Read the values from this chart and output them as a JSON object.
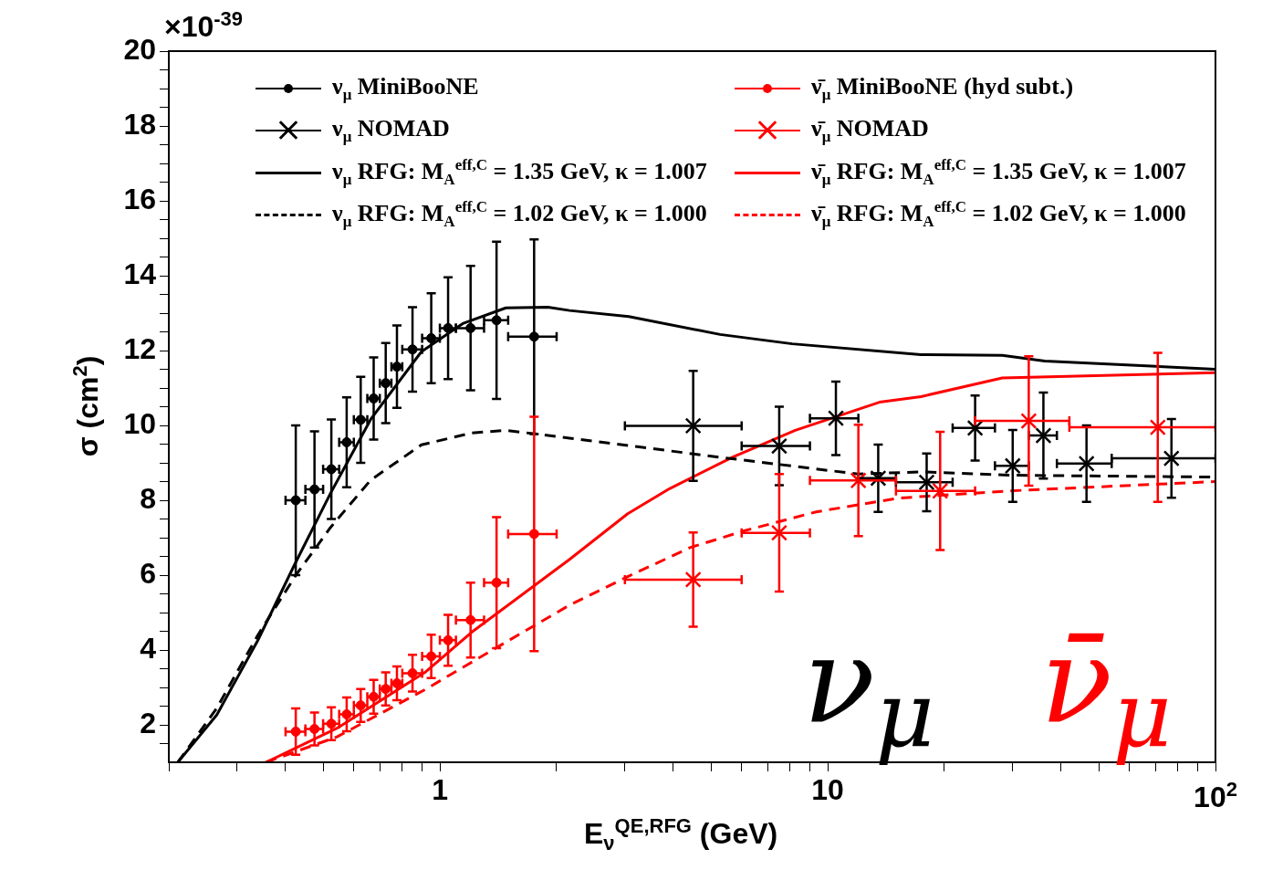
{
  "chart_data": {
    "type": "scatter",
    "xlabel": "E$_{ν}$$^{QE,RFG}$ (GeV)",
    "ylabel": "σ (cm$^{2}$)",
    "annotations": [
      "×10$^{-39}$",
      "ν$_{μ}$",
      "ν̄$_{μ}$"
    ],
    "log": "x",
    "grid": false,
    "legend": "top",
    "xlim": [
      0.2,
      100
    ],
    "xticks": [
      {
        "value": 0.2,
        "label": null
      },
      {
        "value": 0.3,
        "label": null
      },
      {
        "value": 0.4,
        "label": null
      },
      {
        "value": 0.5,
        "label": null
      },
      {
        "value": 0.6,
        "label": null
      },
      {
        "value": 0.7,
        "label": null
      },
      {
        "value": 0.8,
        "label": null
      },
      {
        "value": 0.9,
        "label": null
      },
      1,
      {
        "value": 2,
        "label": null
      },
      {
        "value": 3,
        "label": null
      },
      {
        "value": 4,
        "label": null
      },
      {
        "value": 5,
        "label": null
      },
      {
        "value": 6,
        "label": null
      },
      {
        "value": 7,
        "label": null
      },
      {
        "value": 8,
        "label": null
      },
      {
        "value": 9,
        "label": null
      },
      10,
      {
        "value": 20,
        "label": null
      },
      {
        "value": 30,
        "label": null
      },
      {
        "value": 40,
        "label": null
      },
      {
        "value": 50,
        "label": null
      },
      {
        "value": 60,
        "label": null
      },
      {
        "value": 70,
        "label": null
      },
      {
        "value": 80,
        "label": null
      },
      {
        "value": 90,
        "label": null
      },
      {
        "value": 100,
        "label": "10$^{2}$"
      }
    ],
    "ylim": [
      1,
      20
    ],
    "yticks": [
      {
        "value": 1.5,
        "label": null
      },
      2,
      {
        "value": 2.5,
        "label": null
      },
      {
        "value": 3,
        "label": null
      },
      {
        "value": 3.5,
        "label": null
      },
      4,
      {
        "value": 4.5,
        "label": null
      },
      {
        "value": 5,
        "label": null
      },
      {
        "value": 5.5,
        "label": null
      },
      6,
      {
        "value": 6.5,
        "label": null
      },
      {
        "value": 7,
        "label": null
      },
      {
        "value": 7.5,
        "label": null
      },
      8,
      {
        "value": 8.5,
        "label": null
      },
      {
        "value": 9,
        "label": null
      },
      {
        "value": 9.5,
        "label": null
      },
      10,
      {
        "value": 10.5,
        "label": null
      },
      {
        "value": 11,
        "label": null
      },
      {
        "value": 11.5,
        "label": null
      },
      12,
      {
        "value": 12.5,
        "label": null
      },
      {
        "value": 13,
        "label": null
      },
      {
        "value": 13.5,
        "label": null
      },
      14,
      {
        "value": 14.5,
        "label": null
      },
      {
        "value": 15,
        "label": null
      },
      {
        "value": 15.5,
        "label": null
      },
      16,
      {
        "value": 16.5,
        "label": null
      },
      {
        "value": 17,
        "label": null
      },
      {
        "value": 17.5,
        "label": null
      },
      18,
      {
        "value": 18.5,
        "label": null
      },
      {
        "value": 19,
        "label": null
      },
      {
        "value": 19.5,
        "label": null
      },
      20
    ],
    "series": [
      {
        "name": "ν$_{μ}$ MiniBooNE",
        "type": "scatter",
        "marker": "circle",
        "color": "#000000",
        "x": [
          0.425,
          0.475,
          0.525,
          0.575,
          0.625,
          0.675,
          0.725,
          0.775,
          0.85,
          0.95,
          1.05,
          1.2,
          1.4,
          1.75
        ],
        "values": [
          8.0,
          8.29,
          8.83,
          9.55,
          10.15,
          10.72,
          11.13,
          11.57,
          12.03,
          12.33,
          12.6,
          12.6,
          12.81,
          12.37
        ],
        "errors": [
          2.0,
          1.55,
          1.33,
          1.2,
          1.15,
          1.1,
          1.07,
          1.1,
          1.13,
          1.2,
          1.36,
          1.66,
          2.1,
          2.6
        ],
        "xerrors": [
          0.025,
          0.025,
          0.025,
          0.025,
          0.025,
          0.025,
          0.025,
          0.025,
          0.05,
          0.05,
          0.05,
          0.1,
          0.1,
          0.25
        ]
      },
      {
        "name": "ν$_{μ}$ NOMAD",
        "type": "scatter",
        "marker": "cross",
        "color": "#000000",
        "x": [
          4.5,
          7.5,
          10.5,
          13.5,
          18,
          24,
          30,
          36,
          46.5,
          77
        ],
        "values": [
          9.99,
          9.45,
          10.19,
          8.59,
          8.48,
          9.93,
          8.92,
          9.73,
          8.98,
          9.12
        ],
        "errors": [
          1.47,
          1.05,
          0.98,
          0.9,
          0.77,
          0.87,
          0.96,
          1.15,
          1.02,
          1.05
        ],
        "xerrors": [
          1.5,
          1.5,
          1.5,
          1.5,
          3,
          3,
          3,
          3,
          7.5,
          23
        ]
      },
      {
        "name": "ν$_{μ}$ RFG: M$_{A}$$^{eff,C}$ = 1.35 GeV, κ = 1.007",
        "type": "line",
        "line_style": "solid",
        "marker": "none",
        "color": "#000000",
        "x": [
          0.211,
          0.266,
          0.339,
          0.422,
          0.522,
          0.663,
          0.896,
          1.15,
          1.48,
          1.9,
          2.16,
          3.07,
          5.28,
          8.1,
          17.4,
          28.2,
          36.3,
          100
        ],
        "values": [
          1.0,
          2.27,
          4.25,
          6.28,
          8.18,
          10.16,
          11.97,
          12.73,
          13.14,
          13.16,
          13.07,
          12.91,
          12.43,
          12.18,
          11.89,
          11.87,
          11.72,
          11.5
        ]
      },
      {
        "name": "ν$_{μ}$ RFG: M$_{A}$$^{eff,C}$ = 1.02 GeV, κ = 1.000",
        "type": "line",
        "line_style": "dashed",
        "marker": "none",
        "color": "#000000",
        "x": [
          0.211,
          0.266,
          0.339,
          0.426,
          0.522,
          0.663,
          0.896,
          1.21,
          1.48,
          2.16,
          5.27,
          12.0,
          17.4,
          29.3,
          100
        ],
        "values": [
          1.0,
          2.45,
          4.39,
          6.01,
          7.27,
          8.54,
          9.48,
          9.8,
          9.87,
          9.66,
          9.15,
          8.7,
          8.76,
          8.67,
          8.62
        ]
      },
      {
        "name": "ν̄$_{μ}$ MiniBooNE (hyd subt.)",
        "type": "scatter",
        "marker": "circle",
        "color": "#ff0000",
        "x": [
          0.425,
          0.475,
          0.525,
          0.575,
          0.625,
          0.675,
          0.725,
          0.775,
          0.85,
          0.95,
          1.05,
          1.2,
          1.4,
          1.75
        ],
        "values": [
          1.82,
          1.89,
          2.03,
          2.28,
          2.52,
          2.75,
          2.96,
          3.11,
          3.38,
          3.83,
          4.26,
          4.8,
          5.8,
          7.1
        ],
        "errors": [
          0.62,
          0.44,
          0.44,
          0.45,
          0.44,
          0.45,
          0.44,
          0.45,
          0.49,
          0.58,
          0.68,
          1.0,
          1.75,
          3.13
        ],
        "xerrors": [
          0.025,
          0.025,
          0.025,
          0.025,
          0.025,
          0.025,
          0.025,
          0.025,
          0.05,
          0.05,
          0.05,
          0.1,
          0.1,
          0.25
        ]
      },
      {
        "name": "ν̄$_{μ}$ NOMAD",
        "type": "scatter",
        "marker": "cross",
        "color": "#ff0000",
        "x": [
          4.5,
          7.5,
          12,
          19.5,
          33,
          71
        ],
        "values": [
          5.88,
          7.13,
          8.53,
          8.25,
          10.12,
          9.95
        ],
        "errors": [
          1.26,
          1.57,
          1.49,
          1.58,
          1.73,
          1.99
        ],
        "xerrors": [
          1.5,
          1.5,
          3,
          4.5,
          9,
          29
        ]
      },
      {
        "name": "ν̄$_{μ}$ RFG: M$_{A}$$^{eff,C}$ = 1.35 GeV, κ = 1.007",
        "type": "line",
        "line_style": "solid",
        "marker": "none",
        "color": "#ff0000",
        "x": [
          0.356,
          0.543,
          0.915,
          1.21,
          2.16,
          3.05,
          3.91,
          5.68,
          8.25,
          13.6,
          17.4,
          28.2,
          100
        ],
        "values": [
          1.0,
          1.91,
          3.4,
          4.48,
          6.42,
          7.64,
          8.31,
          9.15,
          9.87,
          10.62,
          10.77,
          11.27,
          11.41
        ]
      },
      {
        "name": "ν̄$_{μ}$ RFG: M$_{A}$$^{eff,C}$ = 1.02 GeV, κ = 1.000",
        "type": "line",
        "line_style": "dashed",
        "marker": "none",
        "color": "#ff0000",
        "x": [
          0.356,
          0.543,
          0.915,
          1.48,
          2.16,
          3.05,
          4.43,
          6.12,
          9.34,
          15.3,
          29.3,
          100
        ],
        "values": [
          1.0,
          1.68,
          2.94,
          4.21,
          5.2,
          5.96,
          6.74,
          7.19,
          7.69,
          8.06,
          8.25,
          8.5
        ]
      }
    ]
  }
}
